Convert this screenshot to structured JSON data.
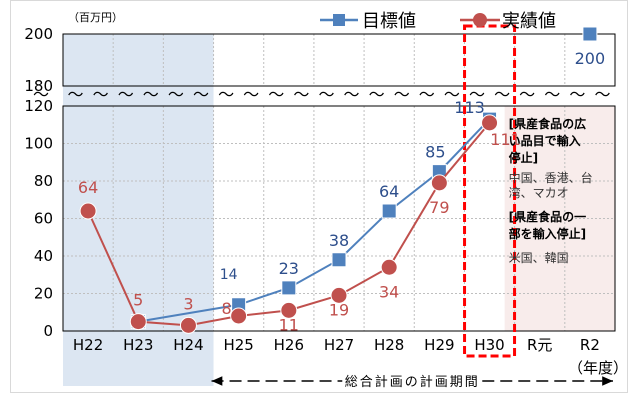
{
  "chart_data": {
    "type": "line",
    "unit_label": "（百万円）",
    "categories": [
      "H22",
      "H23",
      "H24",
      "H25",
      "H26",
      "H27",
      "H28",
      "H29",
      "H30",
      "R元",
      "R2"
    ],
    "fiscal_year_label": "（年度）",
    "y_ticks_lower": [
      "0",
      "20",
      "40",
      "60",
      "80",
      "100",
      "120"
    ],
    "y_ticks_upper": [
      "180",
      "200"
    ],
    "series": [
      {
        "name": "目標値",
        "color": "#4f81bd",
        "label_color": "#2e4f8c",
        "marker": "square",
        "points": [
          {
            "x": "H23",
            "y": 5
          },
          {
            "x": "H25",
            "y": 14
          },
          {
            "x": "H26",
            "y": 23
          },
          {
            "x": "H27",
            "y": 38
          },
          {
            "x": "H28",
            "y": 64
          },
          {
            "x": "H29",
            "y": 85
          },
          {
            "x": "H30",
            "y": 113
          },
          {
            "x": "R2",
            "y": 200
          }
        ],
        "labels": [
          {
            "x": "H25",
            "text": "14"
          },
          {
            "x": "H26",
            "text": "23"
          },
          {
            "x": "H27",
            "text": "38"
          },
          {
            "x": "H28",
            "text": "64"
          },
          {
            "x": "H29",
            "text": "85"
          },
          {
            "x": "H30",
            "text": "113"
          },
          {
            "x": "R2",
            "text": "200"
          }
        ]
      },
      {
        "name": "実績値",
        "color": "#c0504d",
        "label_color": "#c0504d",
        "marker": "circle",
        "points": [
          {
            "x": "H22",
            "y": 64
          },
          {
            "x": "H23",
            "y": 5
          },
          {
            "x": "H24",
            "y": 3
          },
          {
            "x": "H25",
            "y": 8
          },
          {
            "x": "H26",
            "y": 11
          },
          {
            "x": "H27",
            "y": 19
          },
          {
            "x": "H28",
            "y": 34
          },
          {
            "x": "H29",
            "y": 79
          },
          {
            "x": "H30",
            "y": 111
          }
        ],
        "labels": [
          {
            "x": "H22",
            "text": "64"
          },
          {
            "x": "H23",
            "text": "5"
          },
          {
            "x": "H24",
            "text": "3"
          },
          {
            "x": "H25",
            "text": "8"
          },
          {
            "x": "H26",
            "text": "11"
          },
          {
            "x": "H27",
            "text": "19"
          },
          {
            "x": "H28",
            "text": "34"
          },
          {
            "x": "H29",
            "text": "79"
          },
          {
            "x": "H30",
            "text": "111"
          }
        ]
      }
    ],
    "ylim_lower": [
      0,
      120
    ],
    "ylim_upper": [
      180,
      200
    ],
    "grid": true,
    "legend_placement": "top-right",
    "shaded_past_period": [
      "H22",
      "H24"
    ],
    "highlight_category": "H30",
    "plan_period_label": "総合計画の計画期間",
    "plan_period_range": [
      "H25",
      "R2"
    ],
    "notes": [
      {
        "text": "[県産食品の広",
        "bold": true
      },
      {
        "text": "い品目で輸入",
        "bold": true
      },
      {
        "text": "停止]",
        "bold": true
      },
      {
        "text": "中国、香港、台",
        "bold": false
      },
      {
        "text": "湾、マカオ",
        "bold": false
      },
      {
        "text": "[県産食品の一",
        "bold": true
      },
      {
        "text": "部を輸入停止]",
        "bold": true
      },
      {
        "text": "米国、韓国",
        "bold": false
      }
    ]
  }
}
